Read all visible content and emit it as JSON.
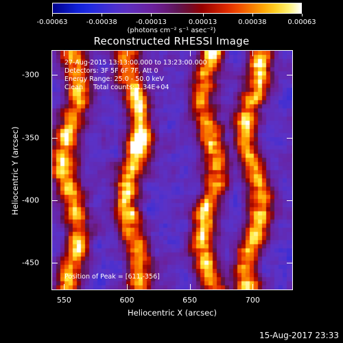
{
  "chart_data": {
    "type": "heatmap",
    "title": "Reconstructed RHESSI Image",
    "xlabel": "Heliocentric X (arcsec)",
    "ylabel": "Heliocentric Y (arcsec)",
    "xlim": [
      540,
      732
    ],
    "ylim": [
      -472,
      -280
    ],
    "x_ticks": [
      "550",
      "600",
      "650",
      "700"
    ],
    "y_ticks": [
      "-300",
      "-350",
      "-400",
      "-450"
    ],
    "colorbar": {
      "tick_labels": [
        "-0.00063",
        "-0.00038",
        "-0.00013",
        "0.00013",
        "0.00038",
        "0.00063"
      ],
      "unit_label": "(photons cm⁻² s⁻¹ asec⁻²)",
      "min": -0.00063,
      "max": 0.00063
    },
    "annotations": {
      "time": "27-Aug-2015 13:13:00.000 to 13:23:00.000",
      "detectors": "Detectors: 3F 5F 6F 7F, Att 0",
      "energy": "Energy Range: 25.0 - 50.0 keV",
      "clean": "Clean     Total counts: 1.34E+04",
      "peak": "Position of Peak = [611,-356]"
    },
    "bright_columns_x": [
      555,
      605,
      665,
      700
    ],
    "peak_position": [
      611,
      -356
    ]
  },
  "timestamp": "15-Aug-2017 23:33"
}
